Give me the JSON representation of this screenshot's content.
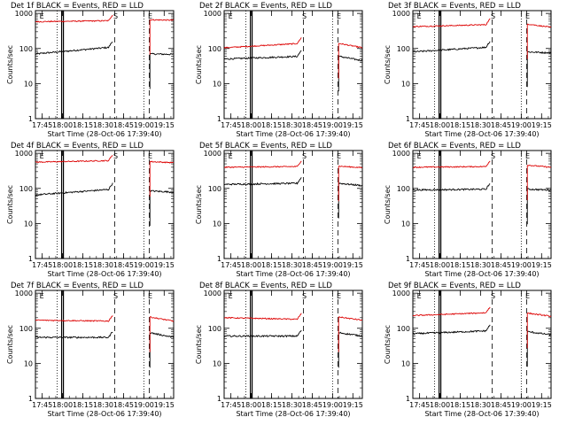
{
  "colors": {
    "events": "#000000",
    "lld": "#dd0000",
    "background": "#ffffff"
  },
  "shared": {
    "x_ticks": [
      "17:45",
      "18:00",
      "18:15",
      "18:30",
      "18:45",
      "19:00",
      "19:15"
    ],
    "x_tick_values_min": [
      -15,
      0,
      15,
      30,
      45,
      60,
      75
    ],
    "xlim_min": [
      -20,
      82
    ],
    "xlabel": "Start Time (28-Oct-06 17:39:40)",
    "ylabel": "Counts/sec",
    "y_ticks": [
      "1",
      "10",
      "100",
      "1000"
    ],
    "ylim": [
      1,
      1200
    ],
    "y_scale": "log",
    "event_lines_min": {
      "dotted": [
        -4,
        60
      ],
      "solid": [
        0
      ],
      "dashed": [
        38.5,
        64
      ]
    },
    "markers": [
      {
        "label": "E",
        "x_min": -17
      },
      {
        "label": "S",
        "x_min": 37.5
      },
      {
        "label": "E",
        "x_min": 63
      }
    ]
  },
  "chart_data": [
    {
      "type": "line",
      "title": "Det 1f BLACK = Events, RED = LLD",
      "xlabel": "Start Time (28-Oct-06 17:39:40)",
      "ylabel": "Counts/sec",
      "yscale": "log",
      "ylim": [
        1,
        1200
      ],
      "series": [
        {
          "name": "BLACK = Events",
          "before": {
            "start": 70,
            "end": 110
          },
          "after": {
            "start": 70,
            "end": 68
          }
        },
        {
          "name": "RED = LLD",
          "before": {
            "start": 580,
            "end": 620
          },
          "after": {
            "start": 660,
            "end": 640
          }
        }
      ]
    },
    {
      "type": "line",
      "title": "Det 2f BLACK = Events, RED = LLD",
      "xlabel": "Start Time (28-Oct-06 17:39:40)",
      "ylabel": "Counts/sec",
      "yscale": "log",
      "ylim": [
        1,
        1200
      ],
      "series": [
        {
          "name": "BLACK = Events",
          "before": {
            "start": 50,
            "end": 60
          },
          "after": {
            "start": 60,
            "end": 45
          }
        },
        {
          "name": "RED = LLD",
          "before": {
            "start": 105,
            "end": 140
          },
          "after": {
            "start": 140,
            "end": 105
          }
        }
      ]
    },
    {
      "type": "line",
      "title": "Det 3f BLACK = Events, RED = LLD",
      "xlabel": "Start Time (28-Oct-06 17:39:40)",
      "ylabel": "Counts/sec",
      "yscale": "log",
      "ylim": [
        1,
        1200
      ],
      "series": [
        {
          "name": "BLACK = Events",
          "before": {
            "start": 80,
            "end": 110
          },
          "after": {
            "start": 80,
            "end": 75
          }
        },
        {
          "name": "RED = LLD",
          "before": {
            "start": 420,
            "end": 480
          },
          "after": {
            "start": 500,
            "end": 400
          }
        }
      ]
    },
    {
      "type": "line",
      "title": "Det 4f BLACK = Events, RED = LLD",
      "xlabel": "Start Time (28-Oct-06 17:39:40)",
      "ylabel": "Counts/sec",
      "yscale": "log",
      "ylim": [
        1,
        1200
      ],
      "series": [
        {
          "name": "BLACK = Events",
          "before": {
            "start": 65,
            "end": 95
          },
          "after": {
            "start": 85,
            "end": 78
          }
        },
        {
          "name": "RED = LLD",
          "before": {
            "start": 560,
            "end": 620
          },
          "after": {
            "start": 580,
            "end": 540
          }
        }
      ]
    },
    {
      "type": "line",
      "title": "Det 5f BLACK = Events, RED = LLD",
      "xlabel": "Start Time (28-Oct-06 17:39:40)",
      "ylabel": "Counts/sec",
      "yscale": "log",
      "ylim": [
        1,
        1200
      ],
      "series": [
        {
          "name": "BLACK = Events",
          "before": {
            "start": 130,
            "end": 140
          },
          "after": {
            "start": 140,
            "end": 120
          }
        },
        {
          "name": "RED = LLD",
          "before": {
            "start": 400,
            "end": 420
          },
          "after": {
            "start": 430,
            "end": 390
          }
        }
      ]
    },
    {
      "type": "line",
      "title": "Det 6f BLACK = Events, RED = LLD",
      "xlabel": "Start Time (28-Oct-06 17:39:40)",
      "ylabel": "Counts/sec",
      "yscale": "log",
      "ylim": [
        1,
        1200
      ],
      "series": [
        {
          "name": "BLACK = Events",
          "before": {
            "start": 90,
            "end": 95
          },
          "after": {
            "start": 95,
            "end": 90
          }
        },
        {
          "name": "RED = LLD",
          "before": {
            "start": 400,
            "end": 420
          },
          "after": {
            "start": 460,
            "end": 400
          }
        }
      ]
    },
    {
      "type": "line",
      "title": "Det 7f BLACK = Events, RED = LLD",
      "xlabel": "Start Time (28-Oct-06 17:39:40)",
      "ylabel": "Counts/sec",
      "yscale": "log",
      "ylim": [
        1,
        1200
      ],
      "series": [
        {
          "name": "BLACK = Events",
          "before": {
            "start": 55,
            "end": 55
          },
          "after": {
            "start": 75,
            "end": 55
          }
        },
        {
          "name": "RED = LLD",
          "before": {
            "start": 170,
            "end": 160
          },
          "after": {
            "start": 210,
            "end": 160
          }
        }
      ]
    },
    {
      "type": "line",
      "title": "Det 8f BLACK = Events, RED = LLD",
      "xlabel": "Start Time (28-Oct-06 17:39:40)",
      "ylabel": "Counts/sec",
      "yscale": "log",
      "ylim": [
        1,
        1200
      ],
      "series": [
        {
          "name": "BLACK = Events",
          "before": {
            "start": 60,
            "end": 60
          },
          "after": {
            "start": 75,
            "end": 60
          }
        },
        {
          "name": "RED = LLD",
          "before": {
            "start": 200,
            "end": 180
          },
          "after": {
            "start": 210,
            "end": 170
          }
        }
      ]
    },
    {
      "type": "line",
      "title": "Det 9f BLACK = Events, RED = LLD",
      "xlabel": "Start Time (28-Oct-06 17:39:40)",
      "ylabel": "Counts/sec",
      "yscale": "log",
      "ylim": [
        1,
        1200
      ],
      "series": [
        {
          "name": "BLACK = Events",
          "before": {
            "start": 70,
            "end": 85
          },
          "after": {
            "start": 80,
            "end": 65
          }
        },
        {
          "name": "RED = LLD",
          "before": {
            "start": 230,
            "end": 280
          },
          "after": {
            "start": 270,
            "end": 220
          }
        }
      ]
    }
  ]
}
